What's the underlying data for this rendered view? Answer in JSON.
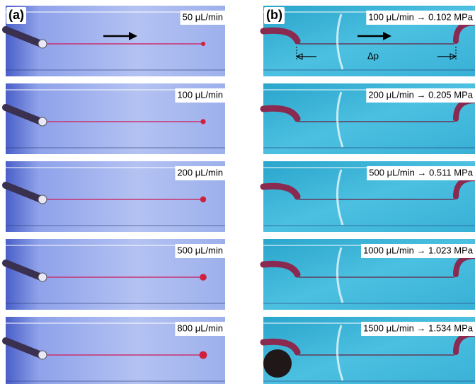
{
  "panels": [
    {
      "label": "(a)",
      "images": [
        {
          "label": "50 μL/min"
        },
        {
          "label": "100 μL/min"
        },
        {
          "label": "200 μL/min"
        },
        {
          "label": "500 μL/min"
        },
        {
          "label": "800 μL/min"
        }
      ]
    },
    {
      "label": "(b)",
      "annotation": "Δp",
      "images": [
        {
          "label": "100 μL/min → 0.102 MPa"
        },
        {
          "label": "200 μL/min → 0.205 MPa"
        },
        {
          "label": "500 μL/min → 0.511 MPa"
        },
        {
          "label": "1000 μL/min → 1.023 MPa"
        },
        {
          "label": "1500 μL/min → 1.534 MPa"
        }
      ]
    }
  ]
}
